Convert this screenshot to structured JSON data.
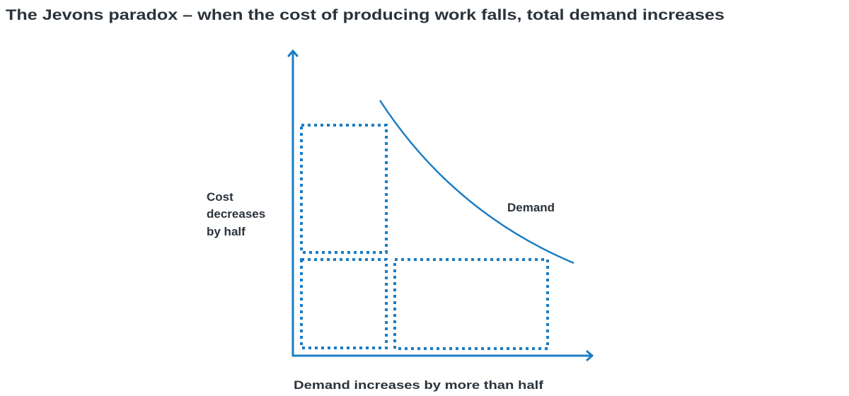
{
  "title": "The Jevons paradox – when the cost of producing work falls, total demand increases",
  "y_label_lines": [
    "Cost",
    "decreases",
    "by half"
  ],
  "x_label": "Demand increases by more than half",
  "curve_label": "Demand",
  "colors": {
    "accent": "#1a7cc4",
    "text": "#2b333b"
  }
}
